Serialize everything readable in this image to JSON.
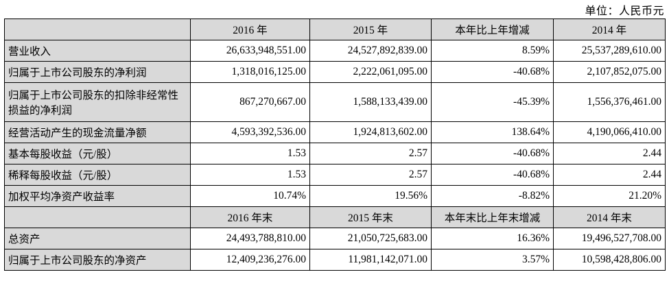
{
  "meta": {
    "unit_label": "单位：人民币元"
  },
  "colors": {
    "header_bg": "#d9d9d9",
    "label_bg": "#d9d9d9",
    "border": "#000000",
    "text": "#000000"
  },
  "table": {
    "sections": [
      {
        "header": [
          "",
          "2016 年",
          "2015 年",
          "本年比上年增减",
          "2014 年"
        ],
        "rows": [
          {
            "label": "营业收入",
            "tall": false,
            "values": [
              "26,633,948,551.00",
              "24,527,892,839.00",
              "8.59%",
              "25,537,289,610.00"
            ]
          },
          {
            "label": "归属于上市公司股东的净利润",
            "tall": false,
            "values": [
              "1,318,016,125.00",
              "2,222,061,095.00",
              "-40.68%",
              "2,107,852,075.00"
            ]
          },
          {
            "label": "归属于上市公司股东的扣除非经常性损益的净利润",
            "tall": true,
            "values": [
              "867,270,667.00",
              "1,588,133,439.00",
              "-45.39%",
              "1,556,376,461.00"
            ]
          },
          {
            "label": "经营活动产生的现金流量净额",
            "tall": false,
            "values": [
              "4,593,392,536.00",
              "1,924,813,602.00",
              "138.64%",
              "4,190,066,410.00"
            ]
          },
          {
            "label": "基本每股收益（元/股）",
            "tall": false,
            "values": [
              "1.53",
              "2.57",
              "-40.68%",
              "2.44"
            ]
          },
          {
            "label": "稀释每股收益（元/股）",
            "tall": false,
            "values": [
              "1.53",
              "2.57",
              "-40.68%",
              "2.44"
            ]
          },
          {
            "label": "加权平均净资产收益率",
            "tall": false,
            "values": [
              "10.74%",
              "19.56%",
              "-8.82%",
              "21.20%"
            ]
          }
        ]
      },
      {
        "header": [
          "",
          "2016 年末",
          "2015 年末",
          "本年末比上年末增减",
          "2014 年末"
        ],
        "rows": [
          {
            "label": "总资产",
            "tall": false,
            "values": [
              "24,493,788,810.00",
              "21,050,725,683.00",
              "16.36%",
              "19,496,527,708.00"
            ]
          },
          {
            "label": "归属于上市公司股东的净资产",
            "tall": false,
            "values": [
              "12,409,236,276.00",
              "11,981,142,071.00",
              "3.57%",
              "10,598,428,806.00"
            ]
          }
        ]
      }
    ]
  }
}
